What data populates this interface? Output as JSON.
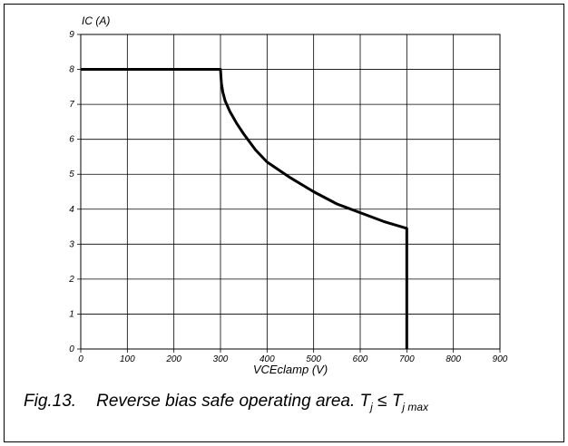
{
  "chart_data": {
    "type": "line",
    "y_label": "IC (A)",
    "x_label": "VCEclamp (V)",
    "caption": [
      "Fig.13.",
      "Reverse bias safe operating area. T",
      "j",
      " ≤ T",
      "j max"
    ],
    "series": [
      {
        "color": "#000000",
        "x": [
          0,
          300,
          302,
          305,
          310,
          320,
          335,
          350,
          375,
          400,
          450,
          500,
          550,
          600,
          650,
          700,
          700
        ],
        "values": [
          8,
          8,
          7.6,
          7.35,
          7.1,
          6.8,
          6.45,
          6.15,
          5.7,
          5.35,
          4.9,
          4.5,
          4.15,
          3.9,
          3.65,
          3.45,
          0
        ]
      }
    ],
    "xlim": [
      0,
      900
    ],
    "xticks": [
      0,
      100,
      200,
      300,
      400,
      500,
      600,
      700,
      800,
      900
    ],
    "ylim": [
      0,
      9
    ],
    "yticks": [
      0,
      1,
      2,
      3,
      4,
      5,
      6,
      7,
      8,
      9
    ],
    "grid": true
  }
}
